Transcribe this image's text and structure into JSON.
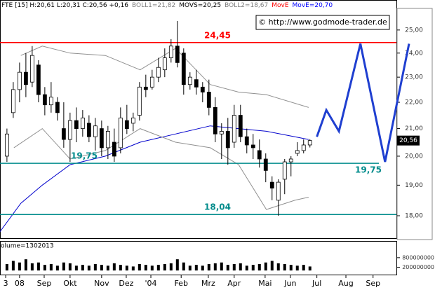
{
  "chart_data": {
    "type": "candlestick",
    "header": [
      {
        "text": "FTE [15] H:20,61 L:20,31 C:20,56 +0,16",
        "color": "#000000"
      },
      {
        "text": "BOLL1=21,82",
        "color": "#808080"
      },
      {
        "text": "MOVS=20,25",
        "color": "#000000"
      },
      {
        "text": "BOLL2=18,67",
        "color": "#808080"
      },
      {
        "text": "MovE",
        "color": "#ff0000"
      },
      {
        "text": "MovE=20,70",
        "color": "#0000ff"
      }
    ],
    "copyright": "© http://www.godmode-trader.de",
    "log_scale": true,
    "xlim": [
      -1.1,
      61.7
    ],
    "xticks": [
      {
        "value": -0.2,
        "label": "3"
      },
      {
        "value": 2,
        "label": "08"
      },
      {
        "value": 5.9,
        "label": "Sep"
      },
      {
        "value": 10,
        "label": "Okt"
      },
      {
        "value": 15,
        "label": "Nov"
      },
      {
        "value": 18.9,
        "label": "Dez"
      },
      {
        "value": 22.8,
        "label": "'04"
      },
      {
        "value": 27.6,
        "label": "Feb"
      },
      {
        "value": 31.9,
        "label": "Mrz"
      },
      {
        "value": 36,
        "label": "Apr"
      },
      {
        "value": 40.9,
        "label": "Mai"
      },
      {
        "value": 44.9,
        "label": "Jun"
      },
      {
        "value": 49.1,
        "label": "Jul"
      },
      {
        "value": 53.7,
        "label": "Aug"
      },
      {
        "value": 58,
        "label": "Sep"
      }
    ],
    "ylim": [
      17.3,
      26.2
    ],
    "yticks": [
      {
        "value": 18,
        "label": "18,00"
      },
      {
        "value": 19,
        "label": "19,00"
      },
      {
        "value": 20,
        "label": "20,00"
      },
      {
        "value": 21,
        "label": "21,00"
      },
      {
        "value": 22,
        "label": "22,00"
      },
      {
        "value": 23,
        "label": "23,00"
      },
      {
        "value": 24,
        "label": "24,00"
      },
      {
        "value": 25,
        "label": "25,00"
      }
    ],
    "x": [
      0,
      1,
      2,
      3,
      4,
      5,
      6,
      7,
      8,
      9,
      10,
      11,
      12,
      13,
      14,
      15,
      16,
      17,
      18,
      19,
      20,
      21,
      22,
      23,
      24,
      25,
      26,
      27,
      28,
      29,
      30,
      31,
      32,
      33,
      34,
      35,
      36,
      37,
      38,
      39,
      40,
      41,
      42,
      43,
      44,
      45,
      46,
      47,
      48
    ],
    "open": [
      20.0,
      21.6,
      22.5,
      23.2,
      22.8,
      23.5,
      22.3,
      21.9,
      22.0,
      21.0,
      20.6,
      21.3,
      21.0,
      21.2,
      20.7,
      21.0,
      20.3,
      20.5,
      20.3,
      21.3,
      21.2,
      21.5,
      22.6,
      22.6,
      23.0,
      23.3,
      23.8,
      24.3,
      24.0,
      22.7,
      22.9,
      22.6,
      22.4,
      21.8,
      20.8,
      20.9,
      20.5,
      21.5,
      20.7,
      20.4,
      20.2,
      19.9,
      19.1,
      18.5,
      19.2,
      19.8,
      20.1,
      20.2,
      20.4
    ],
    "high": [
      21.0,
      22.8,
      23.6,
      24.0,
      24.3,
      23.7,
      22.6,
      22.8,
      22.2,
      22.0,
      21.6,
      21.8,
      21.7,
      21.5,
      21.4,
      21.3,
      21.1,
      21.0,
      21.8,
      21.9,
      21.6,
      22.8,
      23.1,
      23.3,
      23.8,
      24.2,
      24.6,
      25.4,
      24.2,
      23.2,
      23.3,
      22.8,
      22.9,
      22.2,
      21.2,
      21.4,
      21.9,
      21.9,
      21.0,
      20.8,
      20.6,
      20.1,
      19.3,
      19.2,
      19.9,
      20.0,
      20.5,
      20.6,
      20.61
    ],
    "low": [
      19.8,
      21.4,
      22.0,
      22.2,
      22.6,
      22.0,
      21.5,
      21.6,
      21.3,
      20.3,
      19.8,
      20.5,
      20.7,
      20.5,
      20.2,
      20.0,
      19.9,
      19.8,
      20.1,
      20.8,
      20.9,
      21.3,
      22.2,
      22.5,
      22.8,
      23.0,
      23.6,
      23.4,
      22.3,
      22.5,
      22.3,
      22.0,
      21.5,
      20.5,
      19.9,
      19.7,
      20.3,
      20.5,
      20.1,
      19.9,
      19.6,
      19.1,
      18.5,
      18.0,
      18.7,
      19.3,
      20.0,
      20.1,
      20.31
    ],
    "close": [
      20.8,
      22.5,
      23.2,
      22.7,
      23.9,
      22.3,
      21.9,
      22.2,
      21.6,
      20.6,
      21.3,
      21.0,
      21.4,
      20.7,
      21.1,
      20.3,
      20.9,
      20.0,
      21.4,
      21.0,
      21.4,
      22.6,
      22.5,
      23.0,
      23.4,
      23.8,
      24.3,
      23.6,
      22.7,
      23.0,
      22.6,
      22.4,
      21.8,
      20.8,
      20.9,
      20.3,
      21.5,
      20.7,
      20.4,
      20.3,
      19.9,
      19.5,
      18.9,
      19.1,
      19.8,
      19.9,
      20.2,
      20.4,
      20.56
    ],
    "last": {
      "value": 20.56,
      "label": "20,56"
    },
    "lines": [
      {
        "color": "#0000cc",
        "x": [
          -1.1,
          2.2,
          5.6,
          10,
          15.6,
          21.1,
          26.7,
          32.2,
          36.7,
          41.1,
          45.6,
          47.8
        ],
        "values": [
          17.5,
          18.4,
          19.0,
          19.7,
          20.0,
          20.5,
          20.8,
          21.1,
          21.0,
          20.9,
          20.7,
          20.6
        ]
      },
      {
        "color": "#909090",
        "x": [
          2.2,
          5.6,
          10,
          15.6,
          21.1,
          26.7,
          32.2,
          36.7,
          41.1,
          47.8
        ],
        "values": [
          23.9,
          24.3,
          24.0,
          23.9,
          23.3,
          24.2,
          22.7,
          22.4,
          22.3,
          21.8
        ]
      },
      {
        "color": "#909090",
        "x": [
          1.1,
          5.6,
          10,
          15.6,
          21.1,
          26.7,
          32.2,
          36.7,
          41.1,
          45.6,
          47.8
        ],
        "values": [
          20.3,
          21.0,
          19.9,
          20.2,
          21.0,
          20.5,
          20.3,
          19.7,
          18.2,
          18.5,
          18.6
        ]
      }
    ],
    "forecast": {
      "color": "#1f3fd0",
      "x": [
        49.1,
        50.6,
        52.6,
        56,
        59.9,
        63.7
      ],
      "values": [
        20.7,
        21.7,
        20.9,
        24.4,
        19.8,
        24.4
      ]
    },
    "hlines": [
      {
        "value": 24.45,
        "label": "24,45",
        "color": "#ff0000"
      },
      {
        "value": 19.75,
        "label": "19,75",
        "color": "#008b8b"
      },
      {
        "value": 18.04,
        "label": "18,04",
        "color": "#008b8b"
      }
    ],
    "volume": {
      "label": "olume=1302013",
      "ylim": [
        -300000000,
        1800000000
      ],
      "yticks": [
        800000000,
        200000000
      ],
      "values": [
        400000000,
        600000000,
        500000000,
        700000000,
        450000000,
        500000000,
        350000000,
        400000000,
        300000000,
        500000000,
        450000000,
        300000000,
        350000000,
        300000000,
        400000000,
        350000000,
        300000000,
        450000000,
        350000000,
        300000000,
        250000000,
        400000000,
        350000000,
        300000000,
        350000000,
        400000000,
        450000000,
        700000000,
        500000000,
        300000000,
        350000000,
        300000000,
        400000000,
        450000000,
        500000000,
        350000000,
        400000000,
        450000000,
        300000000,
        350000000,
        400000000,
        500000000,
        600000000,
        450000000,
        400000000,
        350000000,
        300000000,
        350000000,
        250000000
      ]
    }
  }
}
